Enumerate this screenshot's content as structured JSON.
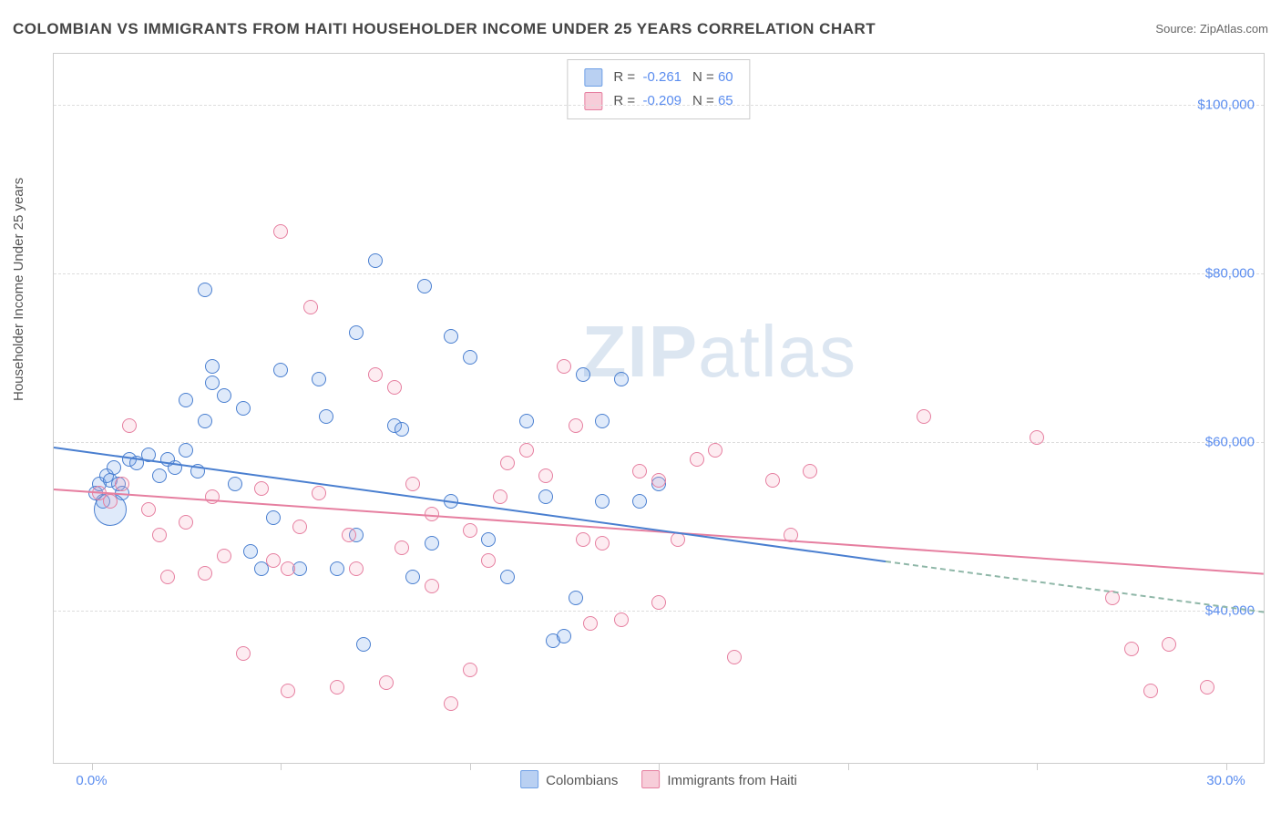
{
  "title": "COLOMBIAN VS IMMIGRANTS FROM HAITI HOUSEHOLDER INCOME UNDER 25 YEARS CORRELATION CHART",
  "source_label": "Source:",
  "source_name": "ZipAtlas.com",
  "watermark_a": "ZIP",
  "watermark_b": "atlas",
  "chart": {
    "type": "scatter",
    "background_color": "#ffffff",
    "grid_color": "#dddddd",
    "axis_color": "#cccccc",
    "tick_label_color": "#5b8def",
    "ylabel": "Householder Income Under 25 years",
    "xlim": [
      -1,
      31
    ],
    "ylim": [
      22000,
      106000
    ],
    "ytick_step": 20000,
    "yticks": [
      40000,
      60000,
      80000,
      100000
    ],
    "ytick_labels": [
      "$40,000",
      "$60,000",
      "$80,000",
      "$100,000"
    ],
    "xticks": [
      0,
      5,
      10,
      15,
      20,
      25,
      30
    ],
    "xtick_labels": [
      "0.0%",
      "",
      "",
      "",
      "",
      "",
      "30.0%"
    ],
    "marker_radius": 8,
    "marker_border_width": 1.2,
    "fill_opacity": 0.22,
    "series": [
      {
        "name": "Colombians",
        "color": "#6fa0e6",
        "border": "#4a7fd0",
        "R": "-0.261",
        "N": "60",
        "trend": {
          "x1": -1,
          "y1": 59500,
          "x2": 21,
          "y2": 46000,
          "x2b": 31,
          "y2b": 40000,
          "dash_after": 21
        },
        "points": [
          [
            0.1,
            54000
          ],
          [
            0.2,
            55000
          ],
          [
            0.3,
            53000
          ],
          [
            0.4,
            56000
          ],
          [
            0.5,
            55500
          ],
          [
            0.6,
            57000
          ],
          [
            0.7,
            55000
          ],
          [
            0.8,
            54000
          ],
          [
            0.5,
            52000,
            18
          ],
          [
            1.0,
            58000
          ],
          [
            1.2,
            57500
          ],
          [
            1.5,
            58500
          ],
          [
            1.8,
            56000
          ],
          [
            2.0,
            58000
          ],
          [
            2.2,
            57000
          ],
          [
            2.5,
            59000
          ],
          [
            2.8,
            56500
          ],
          [
            3.0,
            78000
          ],
          [
            2.5,
            65000
          ],
          [
            3.0,
            62500
          ],
          [
            3.2,
            67000
          ],
          [
            3.5,
            65500
          ],
          [
            3.2,
            69000
          ],
          [
            3.8,
            55000
          ],
          [
            4.0,
            64000
          ],
          [
            4.2,
            47000
          ],
          [
            4.5,
            45000
          ],
          [
            4.8,
            51000
          ],
          [
            5.0,
            68500
          ],
          [
            5.5,
            45000
          ],
          [
            6.0,
            67500
          ],
          [
            6.2,
            63000
          ],
          [
            6.5,
            45000
          ],
          [
            7.0,
            73000
          ],
          [
            7.0,
            49000
          ],
          [
            7.2,
            36000
          ],
          [
            7.5,
            81500
          ],
          [
            8.0,
            62000
          ],
          [
            8.2,
            61500
          ],
          [
            8.5,
            44000
          ],
          [
            8.8,
            78500
          ],
          [
            9.0,
            48000
          ],
          [
            9.5,
            72500
          ],
          [
            9.5,
            53000
          ],
          [
            10.0,
            70000
          ],
          [
            10.5,
            48500
          ],
          [
            11.0,
            44000
          ],
          [
            11.5,
            62500
          ],
          [
            12.0,
            53500
          ],
          [
            12.2,
            36500
          ],
          [
            12.5,
            37000
          ],
          [
            12.8,
            41500
          ],
          [
            13.0,
            68000
          ],
          [
            13.5,
            53000
          ],
          [
            13.5,
            62500
          ],
          [
            14.0,
            67500
          ],
          [
            14.5,
            53000
          ],
          [
            15.0,
            55000
          ]
        ]
      },
      {
        "name": "Immigants from Haiti",
        "label": "Immigrants from Haiti",
        "color": "#f4a7bd",
        "border": "#e67fa0",
        "R": "-0.209",
        "N": "65",
        "trend": {
          "x1": -1,
          "y1": 54500,
          "x2": 31,
          "y2": 44500
        },
        "points": [
          [
            0.2,
            54000
          ],
          [
            0.5,
            53000
          ],
          [
            0.8,
            55000
          ],
          [
            1.0,
            62000
          ],
          [
            1.5,
            52000
          ],
          [
            1.8,
            49000
          ],
          [
            2.0,
            44000
          ],
          [
            2.5,
            50500
          ],
          [
            3.0,
            44500
          ],
          [
            3.2,
            53500
          ],
          [
            3.5,
            46500
          ],
          [
            4.0,
            35000
          ],
          [
            4.5,
            54500
          ],
          [
            4.8,
            46000
          ],
          [
            5.0,
            85000
          ],
          [
            5.2,
            30500
          ],
          [
            5.2,
            45000
          ],
          [
            5.5,
            50000
          ],
          [
            5.8,
            76000
          ],
          [
            6.0,
            54000
          ],
          [
            6.5,
            31000
          ],
          [
            6.8,
            49000
          ],
          [
            7.0,
            45000
          ],
          [
            7.5,
            68000
          ],
          [
            7.8,
            31500
          ],
          [
            8.0,
            66500
          ],
          [
            8.2,
            47500
          ],
          [
            8.5,
            55000
          ],
          [
            9.0,
            43000
          ],
          [
            9.0,
            51500
          ],
          [
            9.5,
            29000
          ],
          [
            10.0,
            49500
          ],
          [
            10.0,
            33000
          ],
          [
            10.5,
            46000
          ],
          [
            10.8,
            53500
          ],
          [
            11.0,
            57500
          ],
          [
            11.5,
            59000
          ],
          [
            12.0,
            56000
          ],
          [
            12.5,
            69000
          ],
          [
            12.8,
            62000
          ],
          [
            13.0,
            48500
          ],
          [
            13.2,
            38500
          ],
          [
            13.5,
            48000
          ],
          [
            14.0,
            39000
          ],
          [
            14.5,
            56500
          ],
          [
            15.0,
            55500
          ],
          [
            15.5,
            48500
          ],
          [
            15.0,
            41000
          ],
          [
            16.0,
            58000
          ],
          [
            16.5,
            59000
          ],
          [
            17.0,
            34500
          ],
          [
            18.0,
            55500
          ],
          [
            18.5,
            49000
          ],
          [
            19.0,
            56500
          ],
          [
            22.0,
            63000
          ],
          [
            25.0,
            60500
          ],
          [
            27.0,
            41500
          ],
          [
            27.5,
            35500
          ],
          [
            28.0,
            30500
          ],
          [
            28.5,
            36000
          ],
          [
            29.5,
            31000
          ]
        ]
      }
    ],
    "legend_swatch_a": {
      "fill": "#b9d0f2",
      "border": "#6fa0e6"
    },
    "legend_swatch_b": {
      "fill": "#f7cdd9",
      "border": "#e67fa0"
    }
  }
}
